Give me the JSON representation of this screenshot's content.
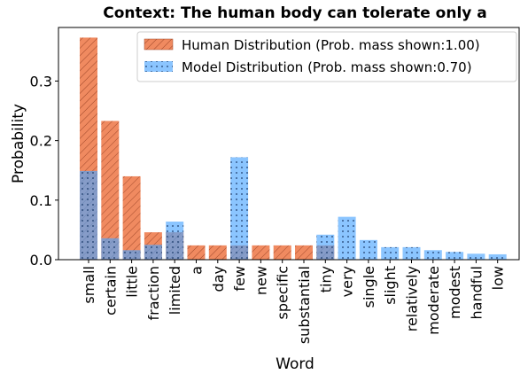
{
  "chart_data": {
    "type": "bar",
    "title": "Context: The human body can tolerate only a",
    "x_label": "Word",
    "y_label": "Probability",
    "categories": [
      "small",
      "certain",
      "little",
      "fraction",
      "limited",
      "a",
      "day",
      "few",
      "new",
      "specific",
      "substantial",
      "tiny",
      "very",
      "single",
      "slight",
      "relatively",
      "moderate",
      "modest",
      "handful",
      "low"
    ],
    "series": [
      {
        "name": "Human Distribution (Prob. mass shown:1.00)",
        "color": "#f08a60",
        "values": [
          0.373,
          0.233,
          0.14,
          0.046,
          0.046,
          0.024,
          0.024,
          0.024,
          0.024,
          0.024,
          0.024,
          0.024,
          0,
          0,
          0,
          0,
          0,
          0,
          0,
          0
        ]
      },
      {
        "name": "Model Distribution (Prob. mass shown:0.70)",
        "color": "#4da6ff",
        "values": [
          0.149,
          0.036,
          0.016,
          0.025,
          0.064,
          0,
          0,
          0.172,
          0,
          0,
          0,
          0.042,
          0.072,
          0.033,
          0.021,
          0.021,
          0.016,
          0.013,
          0.01,
          0.009
        ]
      }
    ],
    "ylim": [
      0,
      0.39
    ],
    "yticks": [
      {
        "value": 0,
        "label": "0.0"
      },
      0.1,
      0.2,
      0.3
    ],
    "legend": "upper right"
  }
}
